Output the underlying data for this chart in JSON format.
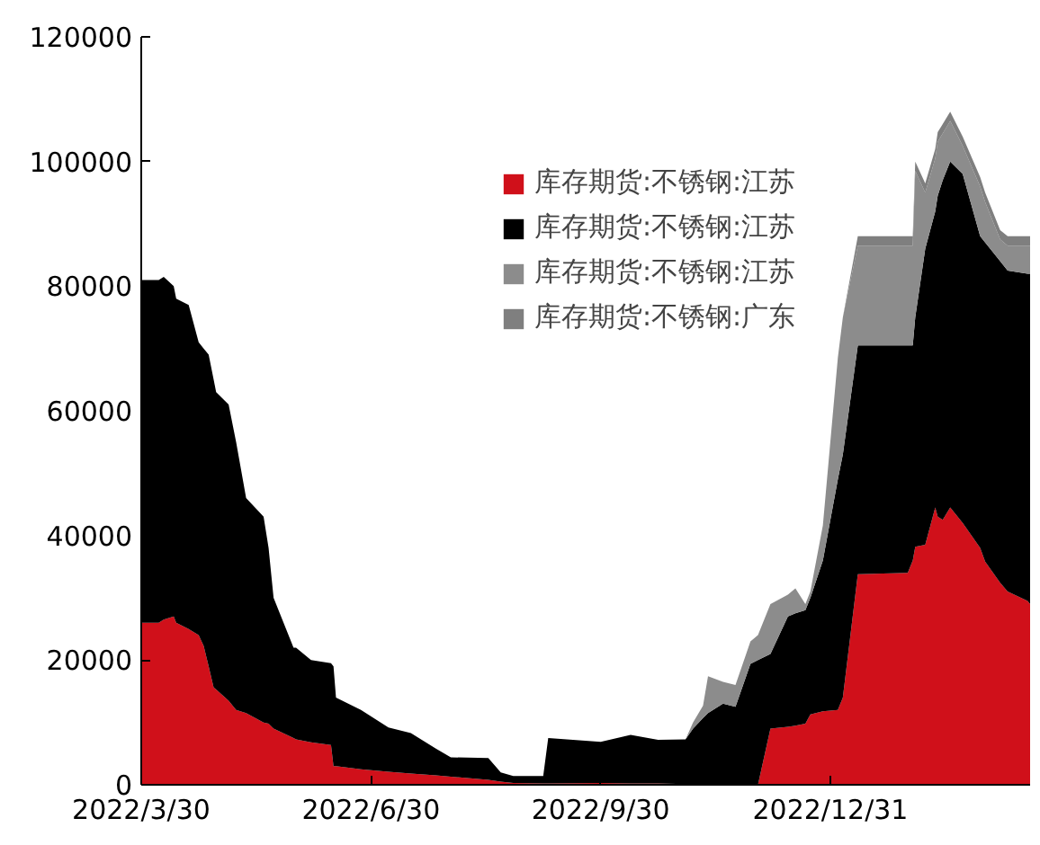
{
  "chart_data": {
    "type": "area",
    "stacked": true,
    "x": [
      "2022-03-30",
      "2022-04-06",
      "2022-04-08",
      "2022-04-12",
      "2022-04-13",
      "2022-04-18",
      "2022-04-22",
      "2022-04-24",
      "2022-04-26",
      "2022-04-28",
      "2022-04-29",
      "2022-05-04",
      "2022-05-07",
      "2022-05-11",
      "2022-05-18",
      "2022-05-20",
      "2022-05-22",
      "2022-05-30",
      "2022-05-31",
      "2022-06-06",
      "2022-06-14",
      "2022-06-15",
      "2022-06-16",
      "2022-06-26",
      "2022-07-07",
      "2022-07-16",
      "2022-07-26",
      "2022-08-01",
      "2022-08-16",
      "2022-08-21",
      "2022-08-26",
      "2022-09-07",
      "2022-09-09",
      "2022-09-30",
      "2022-10-12",
      "2022-10-23",
      "2022-11-03",
      "2022-11-06",
      "2022-11-10",
      "2022-11-12",
      "2022-11-18",
      "2022-11-23",
      "2022-11-29",
      "2022-12-02",
      "2022-12-07",
      "2022-12-14",
      "2022-12-17",
      "2022-12-21",
      "2022-12-23",
      "2022-12-28",
      "2023-01-03",
      "2023-01-05",
      "2023-01-11",
      "2023-01-31",
      "2023-02-02",
      "2023-02-03",
      "2023-02-07",
      "2023-02-11",
      "2023-02-12",
      "2023-02-14",
      "2023-02-17",
      "2023-02-22",
      "2023-03-01",
      "2023-03-03",
      "2023-03-09",
      "2023-03-12",
      "2023-03-20",
      "2023-03-21"
    ],
    "series": [
      {
        "name": "库存期货:不锈钢:江苏",
        "color": "#d0101a",
        "values": [
          26000,
          26000,
          26500,
          27000,
          26000,
          25000,
          24000,
          22300,
          19000,
          15600,
          15300,
          13500,
          12000,
          11500,
          10000,
          9800,
          9000,
          7500,
          7300,
          6800,
          6400,
          3000,
          3000,
          2500,
          2100,
          1800,
          1500,
          1300,
          800,
          500,
          300,
          200,
          200,
          300,
          200,
          200,
          100,
          0,
          0,
          0,
          0,
          0,
          0,
          0,
          9000,
          9300,
          9500,
          9800,
          11300,
          11800,
          12000,
          14000,
          33800,
          34000,
          36000,
          38200,
          38500,
          44500,
          43000,
          42500,
          44500,
          42000,
          38000,
          35800,
          32400,
          31000,
          29500,
          29000
        ]
      },
      {
        "name": "库存期货:不锈钢:江苏",
        "color": "#000000",
        "values": [
          55000,
          55000,
          55000,
          53000,
          52000,
          52000,
          47000,
          47700,
          50000,
          49400,
          47700,
          47500,
          43000,
          34500,
          33000,
          28200,
          21000,
          14500,
          14700,
          13200,
          13100,
          16000,
          11000,
          9500,
          7100,
          6500,
          4300,
          3100,
          3500,
          1500,
          1100,
          1200,
          7300,
          6600,
          7800,
          7000,
          7200,
          9000,
          10700,
          11500,
          13000,
          12500,
          19400,
          20000,
          12000,
          17700,
          18000,
          18200,
          18700,
          24200,
          37000,
          39000,
          36700,
          36500,
          34500,
          36800,
          47500,
          47500,
          51500,
          54500,
          55500,
          56000,
          50000,
          51200,
          51600,
          51500,
          52500,
          53000
        ]
      },
      {
        "name": "库存期货:不锈钢:江苏",
        "color": "#8c8c8c",
        "values": [
          0,
          0,
          0,
          0,
          0,
          0,
          0,
          0,
          0,
          0,
          0,
          0,
          0,
          0,
          0,
          0,
          0,
          0,
          0,
          0,
          0,
          0,
          0,
          0,
          0,
          0,
          0,
          0,
          0,
          0,
          0,
          0,
          0,
          0,
          0,
          0,
          0,
          1000,
          2000,
          5900,
          3500,
          3500,
          3600,
          4000,
          8000,
          3500,
          4000,
          1000,
          1000,
          5600,
          19500,
          22000,
          16000,
          16000,
          16000,
          23500,
          9000,
          8500,
          8700,
          7500,
          6500,
          4500,
          8000,
          6500,
          3500,
          4000,
          4500,
          4500
        ]
      },
      {
        "name": "库存期货:不锈钢:广东",
        "color": "#7f7f7f",
        "values": [
          0,
          0,
          0,
          0,
          0,
          0,
          0,
          0,
          0,
          0,
          0,
          0,
          0,
          0,
          0,
          0,
          0,
          0,
          0,
          0,
          0,
          0,
          0,
          0,
          0,
          0,
          0,
          0,
          0,
          0,
          0,
          0,
          0,
          0,
          0,
          0,
          0,
          0,
          0,
          0,
          0,
          0,
          0,
          0,
          0,
          0,
          0,
          0,
          0,
          0,
          0,
          0,
          1500,
          1500,
          1500,
          1500,
          1500,
          1500,
          1500,
          1500,
          1500,
          1500,
          1500,
          1500,
          1500,
          1500,
          1500,
          1500
        ]
      }
    ],
    "xlim": [
      "2022-03-30",
      "2023-03-21"
    ],
    "xticks": [
      {
        "value": "2022-03-30",
        "label": "2022/3/30"
      },
      {
        "value": "2022-06-30",
        "label": "2022/6/30"
      },
      {
        "value": "2022-09-30",
        "label": "2022/9/30"
      },
      {
        "value": "2022-12-31",
        "label": "2022/12/31"
      }
    ],
    "ylim": [
      0,
      120000
    ],
    "yticks": [
      0,
      20000,
      40000,
      60000,
      80000,
      100000,
      120000
    ],
    "grid": false,
    "legend": "top right"
  }
}
